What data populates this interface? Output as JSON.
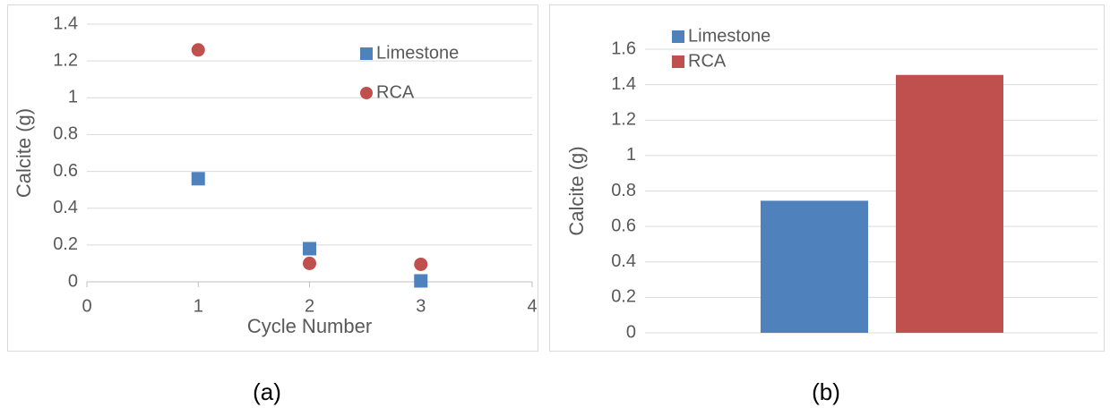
{
  "chart_data": [
    {
      "type": "scatter",
      "caption": "(a)",
      "x_label": "Cycle Number",
      "y_label": "Calcite (g)",
      "x": [
        1,
        2,
        3
      ],
      "series": [
        {
          "name": "Limestone",
          "color": "#4f81bd",
          "marker": "square",
          "values": [
            0.56,
            0.18,
            0.005
          ]
        },
        {
          "name": "RCA",
          "color": "#c0504d",
          "marker": "circle",
          "values": [
            1.26,
            0.1,
            0.095
          ]
        }
      ],
      "xlim": [
        0,
        4
      ],
      "xticks": [
        0,
        1,
        2,
        3,
        4
      ],
      "ylim": [
        0,
        1.4
      ],
      "yticks": [
        0,
        0.2,
        0.4,
        0.6,
        0.8,
        1,
        1.2,
        1.4
      ],
      "grid": true,
      "legend": "upper right"
    },
    {
      "type": "bar",
      "caption": "(b)",
      "y_label": "Calcite (g)",
      "categories": [
        null
      ],
      "series": [
        {
          "name": "Limestone",
          "color": "#4f81bd",
          "values": [
            0.745
          ]
        },
        {
          "name": "RCA",
          "color": "#c0504d",
          "values": [
            1.455
          ]
        }
      ],
      "ylim": [
        0,
        1.6
      ],
      "yticks": [
        0,
        0.2,
        0.4,
        0.6,
        0.8,
        1,
        1.2,
        1.4,
        1.6
      ],
      "grid": true,
      "legend": "upper left"
    }
  ]
}
